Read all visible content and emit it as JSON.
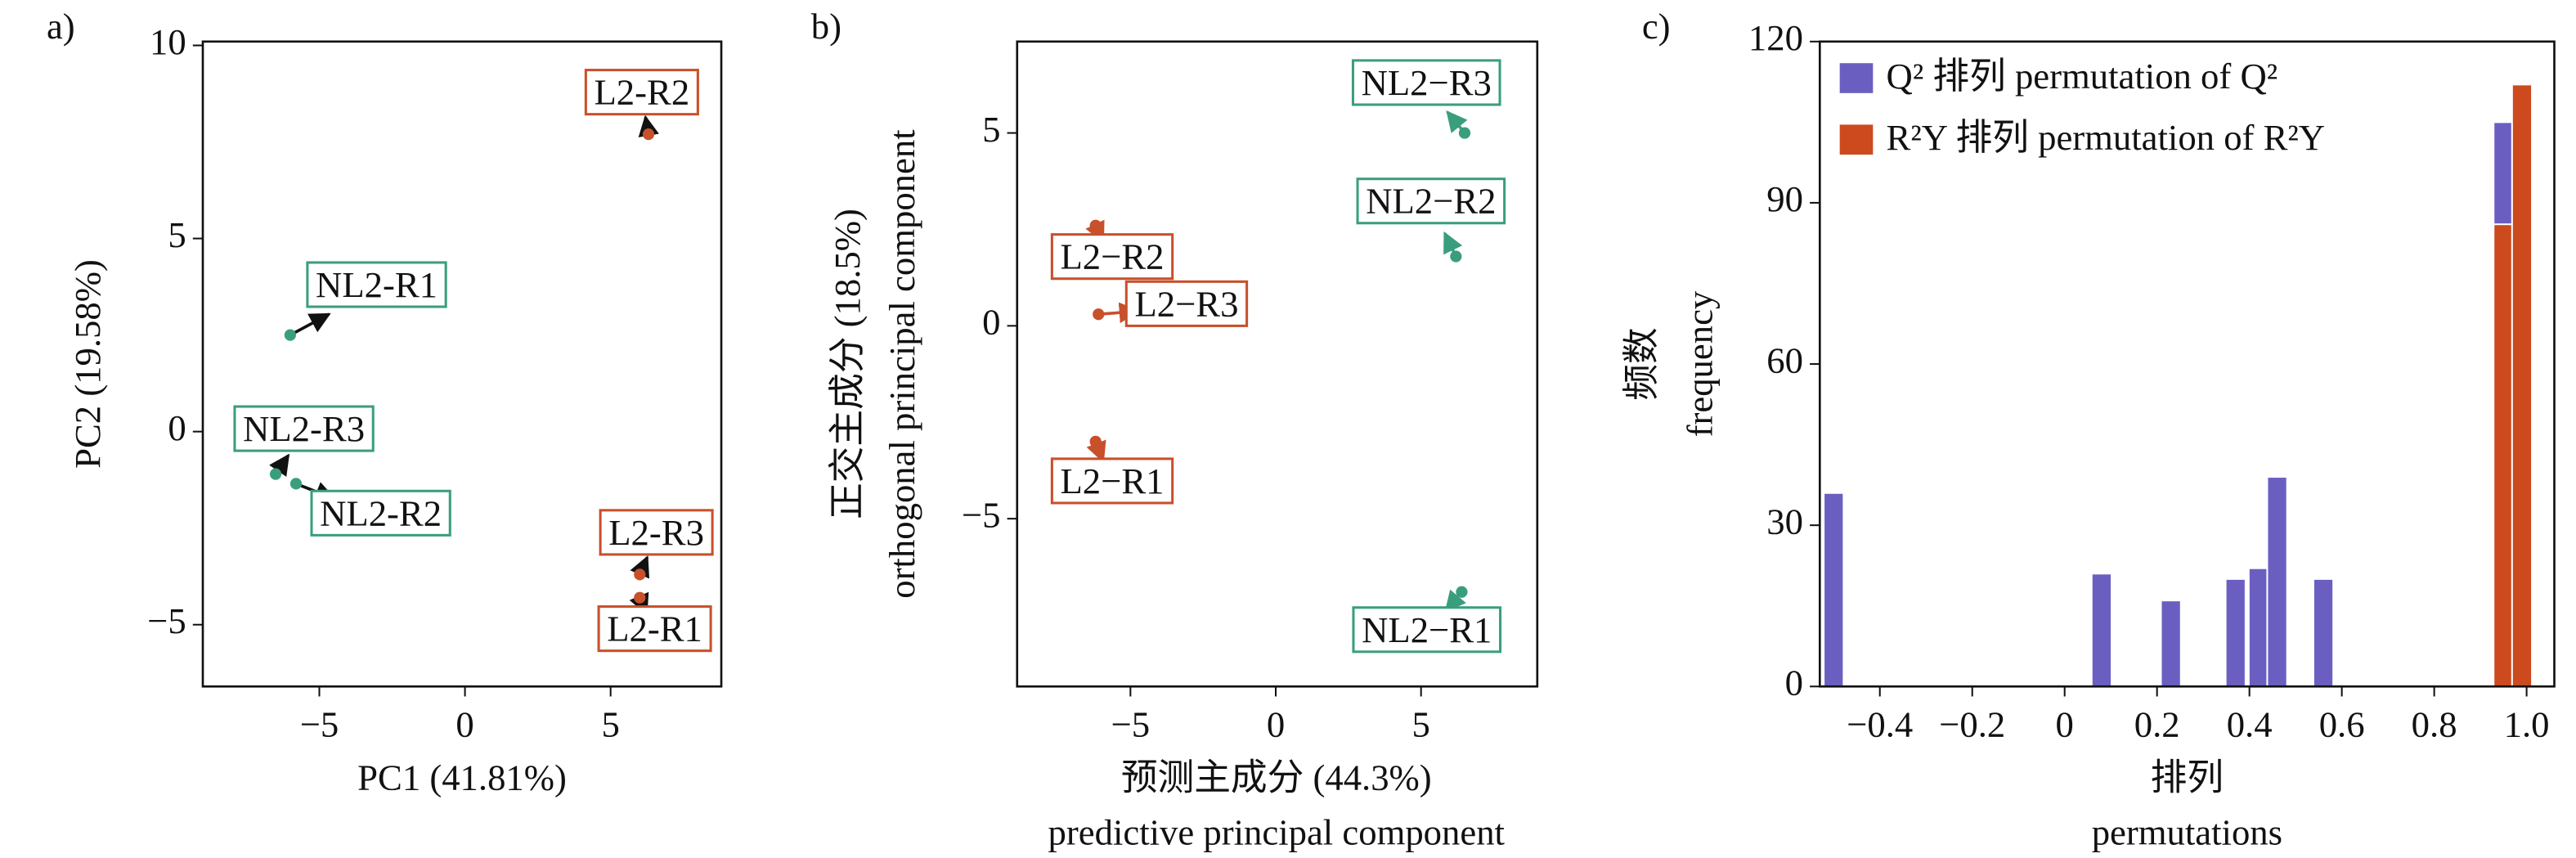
{
  "charts": [
    {
      "type": "scatter",
      "panel": "a)",
      "xlabel": [
        "PC1 (41.81%)"
      ],
      "ylabel": [
        "PC2 (19.58%)"
      ],
      "xlim": [
        -9,
        8.8
      ],
      "ylim": [
        -6.6,
        10.1
      ],
      "xticks": [
        {
          "value": -5,
          "label": "−5"
        },
        0,
        5
      ],
      "yticks": [
        {
          "value": -5,
          "label": "−5"
        },
        0,
        5,
        10
      ],
      "point_labels": [
        "L2-R2",
        "NL2-R1",
        "NL2-R3",
        "NL2-R2",
        "L2-R3",
        "L2-R1"
      ],
      "x": [
        6.3,
        -6.0,
        -6.5,
        -5.8,
        6.0,
        6.0
      ],
      "y": [
        7.7,
        2.5,
        -1.1,
        -1.35,
        -3.7,
        -4.3
      ],
      "point_colors": [
        "#c8502a",
        "#3a9e7e",
        "#3a9e7e",
        "#3a9e7e",
        "#c8502a",
        "#c8502a"
      ],
      "arrow_color": "#111111"
    },
    {
      "type": "scatter",
      "panel": "b)",
      "xlabel": [
        "预测主成分 (44.3%)",
        "predictive principal component"
      ],
      "ylabel": [
        "正交主成分 (18.5%)",
        "orthogonal principal component"
      ],
      "xlim": [
        -8.9,
        9.0
      ],
      "ylim": [
        -9.35,
        7.37
      ],
      "xticks": [
        {
          "value": -5,
          "label": "−5"
        },
        0,
        5
      ],
      "yticks": [
        {
          "value": -5,
          "label": "−5"
        },
        0,
        5
      ],
      "point_labels": [
        "NL2−R3",
        "NL2−R2",
        "NL2−R1",
        "L2−R2",
        "L2−R3",
        "L2−R1"
      ],
      "x": [
        6.5,
        6.2,
        6.4,
        -6.2,
        -6.1,
        -6.2
      ],
      "y": [
        5.0,
        1.8,
        -6.9,
        2.6,
        0.3,
        -3.0
      ],
      "point_colors": [
        "#3a9e7e",
        "#3a9e7e",
        "#3a9e7e",
        "#c8502a",
        "#c8502a",
        "#c8502a"
      ]
    },
    {
      "type": "bar",
      "panel": "c)",
      "xlabel": [
        "排列",
        "permutations"
      ],
      "ylabel": [
        "频数",
        "frequency"
      ],
      "xlim": [
        -0.53,
        1.06
      ],
      "ylim": [
        0,
        120
      ],
      "xticks": [
        {
          "value": -0.4,
          "label": "−0.4"
        },
        {
          "value": -0.2,
          "label": "−0.2"
        },
        0,
        0.2,
        0.4,
        0.6,
        0.8,
        {
          "value": 1.0,
          "label": "1.0"
        }
      ],
      "yticks": [
        0,
        30,
        60,
        90,
        120
      ],
      "series": [
        {
          "name": "Q² 排列 permutation of Q²",
          "color": "#6a5fc1",
          "x": [
            -0.5,
            0.08,
            0.23,
            0.37,
            0.42,
            0.46,
            0.56,
            0.95
          ],
          "values": [
            36,
            21,
            16,
            20,
            22,
            39,
            20,
            105
          ]
        },
        {
          "name": "R²Y 排列 permutation of R²Y",
          "color": "#cc4a1e",
          "x": [
            0.95,
            0.99
          ],
          "values": [
            86,
            112
          ]
        }
      ]
    }
  ]
}
